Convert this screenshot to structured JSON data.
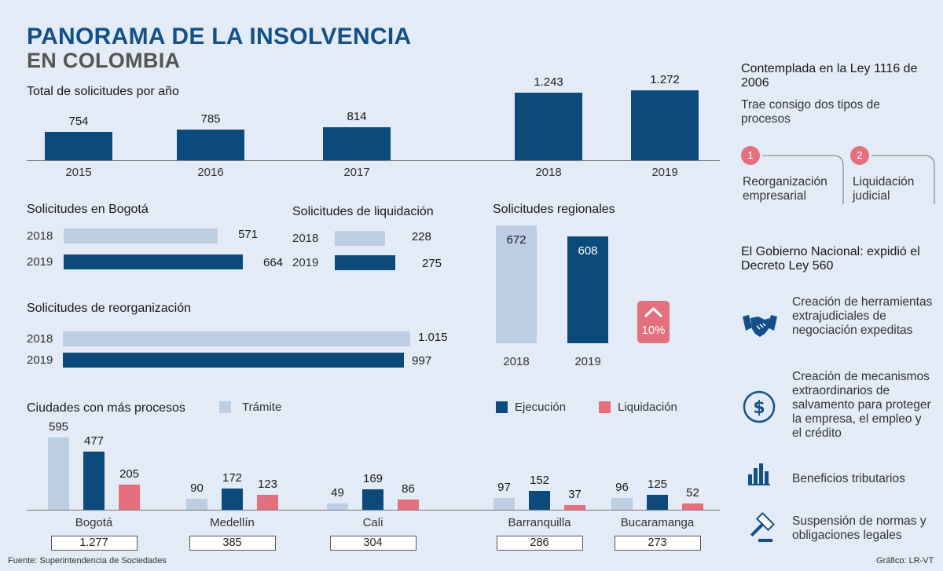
{
  "title": {
    "line1": "PANORAMA DE LA INSOLVENCIA",
    "line2": "EN COLOMBIA"
  },
  "colors": {
    "dark": "#0d4a7c",
    "light": "#bccde4",
    "red": "#e5707d",
    "title": "#13508a"
  },
  "chart_data": [
    {
      "id": "total",
      "type": "bar",
      "title": "Total de solicitudes por año",
      "categories": [
        "2015",
        "2016",
        "2017",
        "2018",
        "2019"
      ],
      "values": [
        754,
        785,
        814,
        1243,
        1272
      ],
      "value_labels": [
        "754",
        "785",
        "814",
        "1.243",
        "1.272"
      ]
    },
    {
      "id": "bogota",
      "type": "bar",
      "orientation": "horizontal",
      "title": "Solicitudes en Bogotá",
      "categories": [
        "2018",
        "2019"
      ],
      "values": [
        571,
        664
      ],
      "value_labels": [
        "571",
        "664"
      ]
    },
    {
      "id": "liquidacion",
      "type": "bar",
      "orientation": "horizontal",
      "title": "Solicitudes de liquidación",
      "categories": [
        "2018",
        "2019"
      ],
      "values": [
        228,
        275
      ],
      "value_labels": [
        "228",
        "275"
      ]
    },
    {
      "id": "regionales",
      "type": "bar",
      "title": "Solicitudes regionales",
      "categories": [
        "2018",
        "2019"
      ],
      "values": [
        672,
        608
      ],
      "value_labels": [
        "672",
        "608"
      ],
      "annotation": "10%"
    },
    {
      "id": "reorganizacion",
      "type": "bar",
      "orientation": "horizontal",
      "title": "Solicitudes de reorganización",
      "categories": [
        "2018",
        "2019"
      ],
      "values": [
        1015,
        997
      ],
      "value_labels": [
        "1.015",
        "997"
      ]
    },
    {
      "id": "ciudades",
      "type": "bar",
      "title": "Ciudades con más procesos",
      "categories": [
        "Bogotá",
        "Medellín",
        "Cali",
        "Barranquilla",
        "Bucaramanga"
      ],
      "totals": [
        "1.277",
        "385",
        "304",
        "286",
        "273"
      ],
      "series": [
        {
          "name": "Trámite",
          "values": [
            595,
            90,
            49,
            97,
            96
          ]
        },
        {
          "name": "Ejecución",
          "values": [
            477,
            172,
            169,
            152,
            125
          ]
        },
        {
          "name": "Liquidación",
          "values": [
            205,
            123,
            86,
            37,
            52
          ]
        }
      ],
      "legend": "top"
    }
  ],
  "side": {
    "ley_title": "Contemplada en la Ley 1116 de 2006",
    "ley_sub": "Trae consigo dos tipos de procesos",
    "procesos": [
      {
        "num": "1",
        "label": "Reorganización empresarial"
      },
      {
        "num": "2",
        "label": "Liquidación judicial"
      }
    ],
    "decreto_title": "El Gobierno Nacional: expidió el Decreto Ley 560",
    "medidas": [
      {
        "icon": "handshake-icon",
        "text": "Creación de herramientas extrajudiciales de negociación expeditas"
      },
      {
        "icon": "dollar-icon",
        "text": "Creación de mecanismos extraordinarios de salvamento para proteger la empresa, el empleo y el crédito"
      },
      {
        "icon": "bar-chart-icon",
        "text": "Beneficios tributarios"
      },
      {
        "icon": "gavel-icon",
        "text": "Suspensión de normas y obligaciones legales"
      }
    ]
  },
  "footer": {
    "source": "Fuente: Superintendencia de Sociedades",
    "credit": "Gráfico: LR-VT"
  }
}
